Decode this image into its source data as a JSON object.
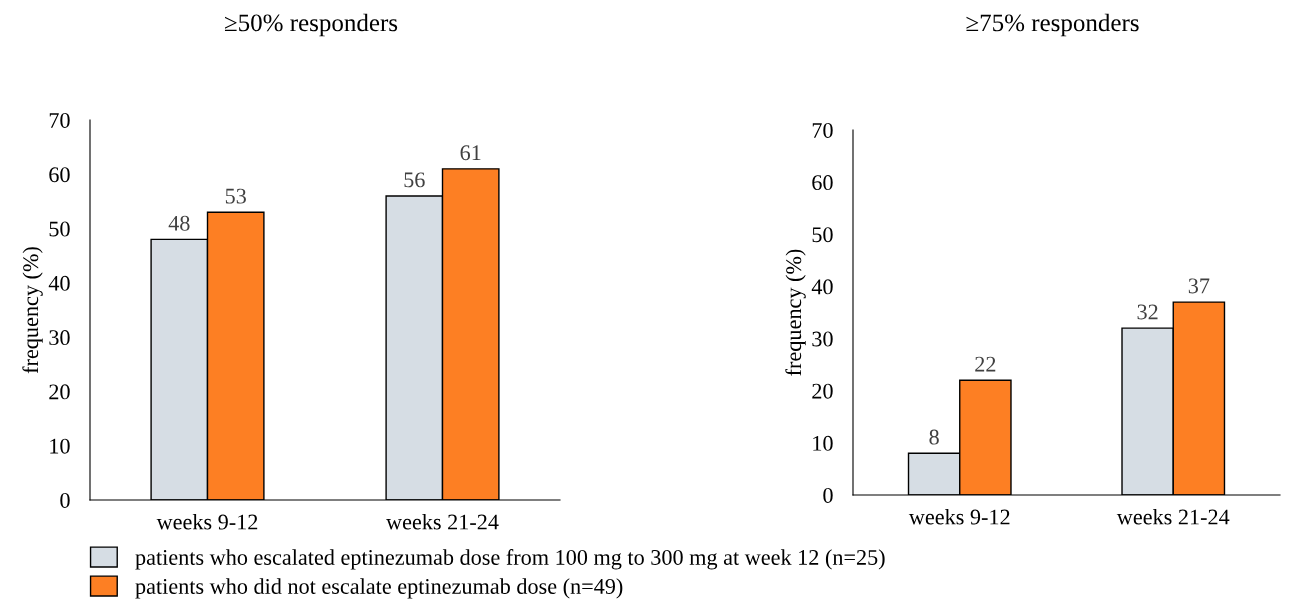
{
  "chart_data": [
    {
      "type": "bar",
      "title": "≥50% responders",
      "ylabel": "frequency (%)",
      "categories": [
        "weeks 9-12",
        "weeks 21-24"
      ],
      "series": [
        {
          "name": "patients who escalated eptinezumab dose from 100 mg to 300 mg at week 12 (n=25)",
          "color": "#d6dde4",
          "values": [
            48,
            56
          ]
        },
        {
          "name": "patients who did not escalate eptinezumab dose (n=49)",
          "color": "#fd7f23",
          "values": [
            53,
            61
          ]
        }
      ],
      "ylim": [
        0,
        70
      ],
      "yticks": [
        0,
        10,
        20,
        30,
        40,
        50,
        60,
        70
      ],
      "data_labels": true,
      "grid": false,
      "legend": "bottom"
    },
    {
      "type": "bar",
      "title": "≥75% responders",
      "ylabel": "frequency (%)",
      "categories": [
        "weeks 9-12",
        "weeks 21-24"
      ],
      "series": [
        {
          "color": "#d6dde4",
          "values": [
            8,
            32
          ]
        },
        {
          "color": "#fd7f23",
          "values": [
            22,
            37
          ]
        }
      ],
      "ylim": [
        0,
        70
      ],
      "yticks": [
        0,
        10,
        20,
        30,
        40,
        50,
        60,
        70
      ],
      "data_labels": true,
      "grid": false
    }
  ]
}
